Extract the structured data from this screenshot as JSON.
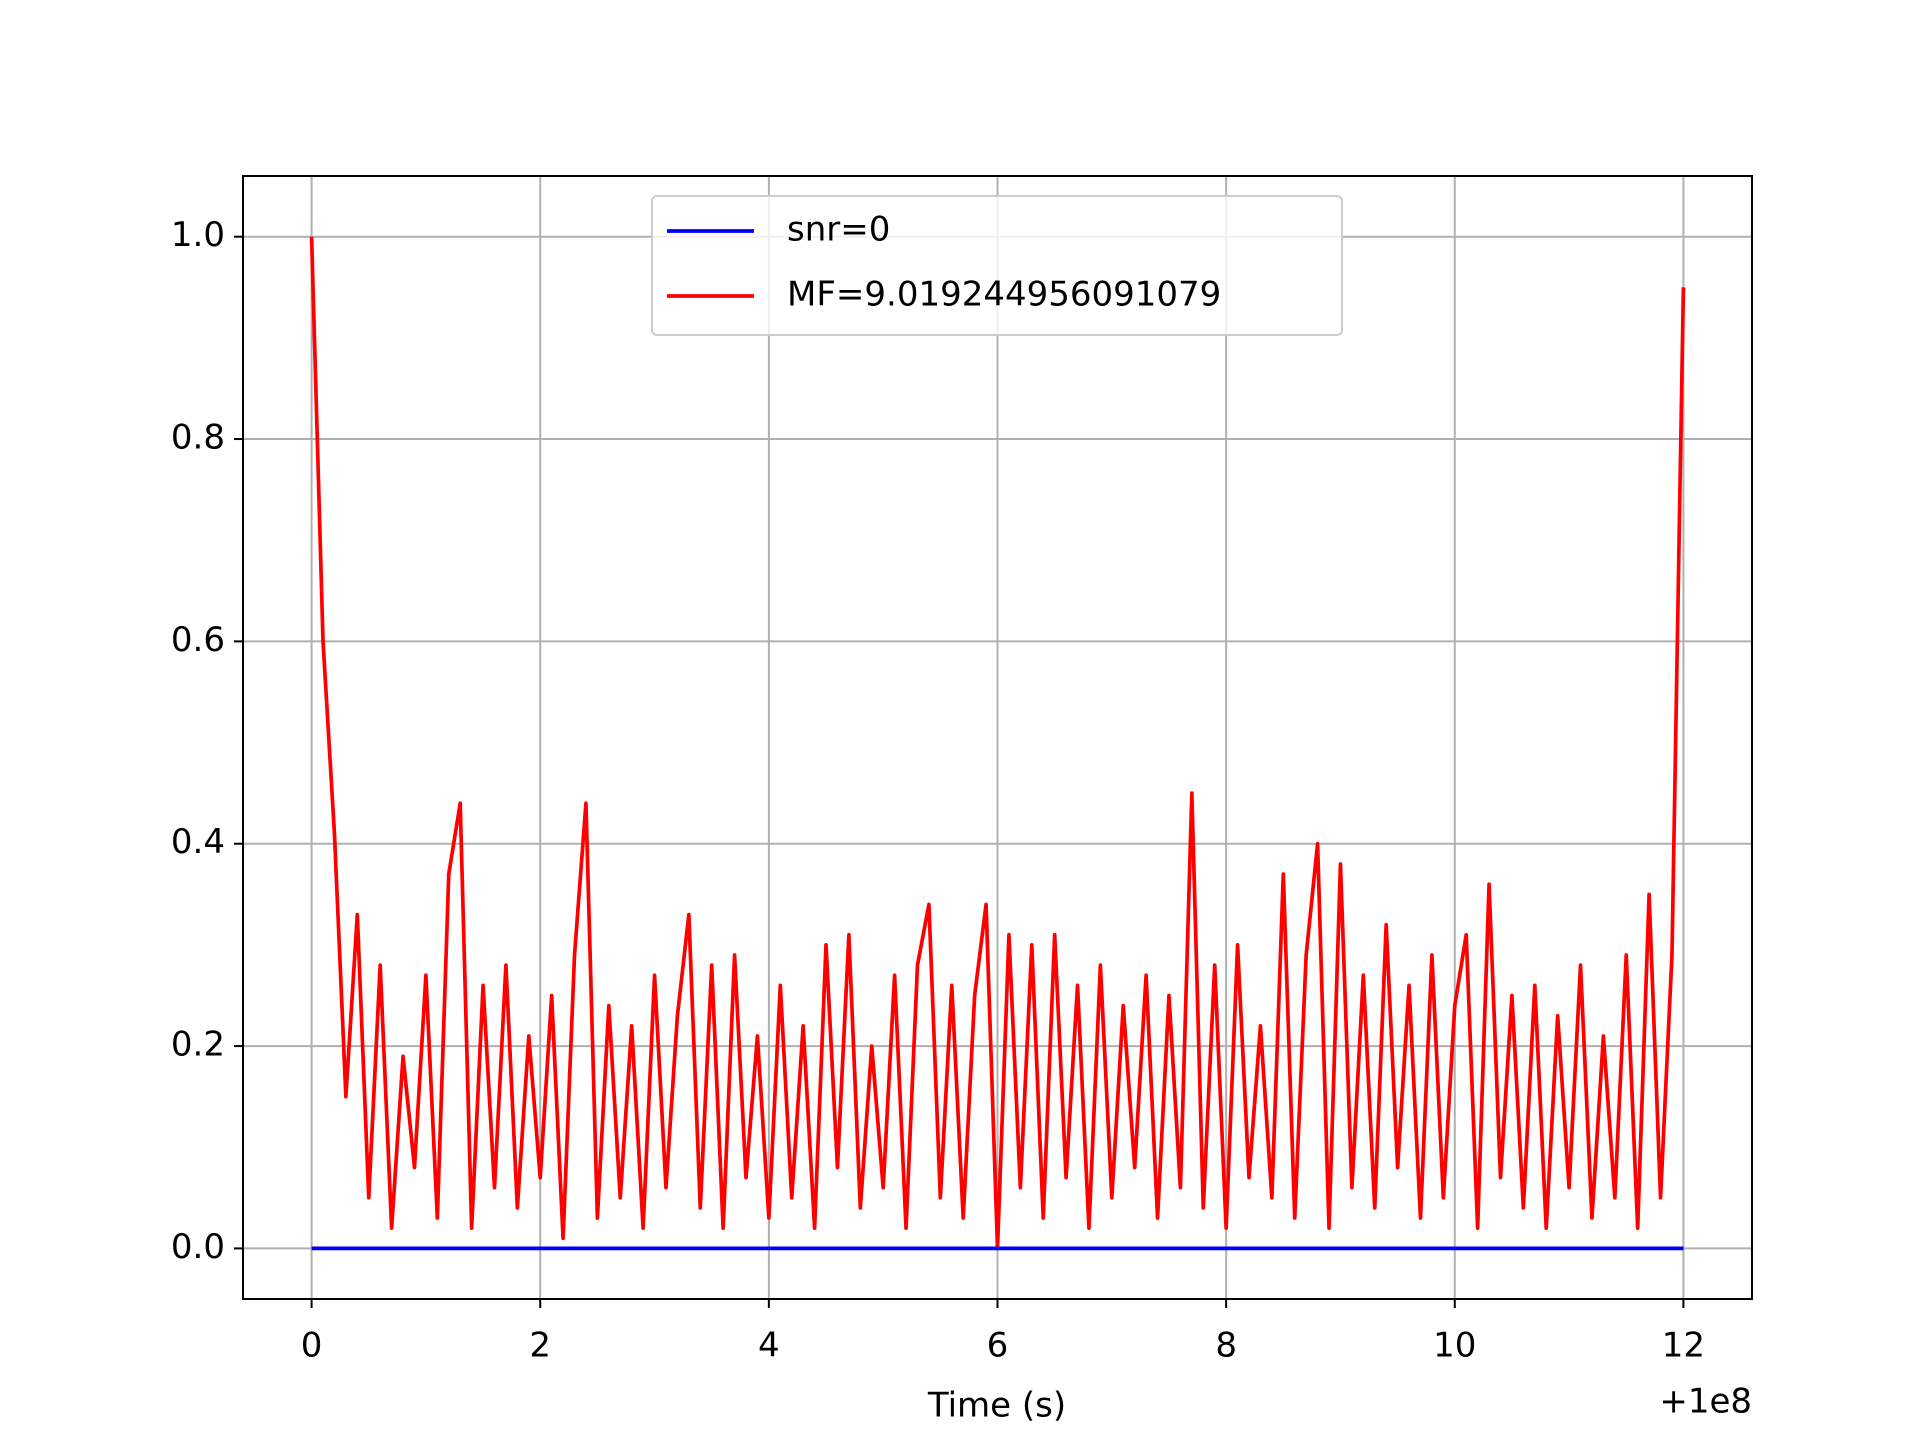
{
  "chart_data": {
    "type": "line",
    "xlabel": "Time (s)",
    "x_offset_label": "+1e8",
    "xlim": [
      -0.6,
      12.6
    ],
    "xticks": [
      0,
      2,
      4,
      6,
      8,
      10,
      12
    ],
    "ylim": [
      -0.05,
      1.06
    ],
    "yticks": [
      {
        "value": 0,
        "label": "0.0"
      },
      {
        "value": 0.2,
        "label": "0.2"
      },
      {
        "value": 0.4,
        "label": "0.4"
      },
      {
        "value": 0.6,
        "label": "0.6"
      },
      {
        "value": 0.8,
        "label": "0.8"
      },
      {
        "value": 1,
        "label": "1.0"
      }
    ],
    "grid": true,
    "legend": "upper center",
    "series": [
      {
        "name": "snr=0",
        "color": "#0000ff",
        "x": [
          0,
          12
        ],
        "values": [
          0,
          0
        ]
      },
      {
        "name": "MF=9.019244956091079",
        "color": "#ff0000",
        "x": [
          0,
          0.1,
          0.2,
          0.3,
          0.4,
          0.5,
          0.6,
          0.7,
          0.8,
          0.9,
          1,
          1.1,
          1.2,
          1.3,
          1.4,
          1.5,
          1.6,
          1.7,
          1.8,
          1.9,
          2,
          2.1,
          2.2,
          2.3,
          2.4,
          2.5,
          2.6,
          2.7,
          2.8,
          2.9,
          3,
          3.1,
          3.2,
          3.3,
          3.4,
          3.5,
          3.6,
          3.7,
          3.8,
          3.9,
          4,
          4.1,
          4.2,
          4.3,
          4.4,
          4.5,
          4.6,
          4.7,
          4.8,
          4.9,
          5,
          5.1,
          5.2,
          5.3,
          5.4,
          5.5,
          5.6,
          5.7,
          5.8,
          5.9,
          6,
          6.1,
          6.2,
          6.3,
          6.4,
          6.5,
          6.6,
          6.7,
          6.8,
          6.9,
          7,
          7.1,
          7.2,
          7.3,
          7.4,
          7.5,
          7.6,
          7.7,
          7.8,
          7.9,
          8,
          8.1,
          8.2,
          8.3,
          8.4,
          8.5,
          8.6,
          8.7,
          8.8,
          8.9,
          9,
          9.1,
          9.2,
          9.3,
          9.4,
          9.5,
          9.6,
          9.7,
          9.8,
          9.9,
          10,
          10.1,
          10.2,
          10.3,
          10.4,
          10.5,
          10.6,
          10.7,
          10.8,
          10.9,
          11,
          11.1,
          11.2,
          11.3,
          11.4,
          11.5,
          11.6,
          11.7,
          11.8,
          11.9,
          12
        ],
        "values": [
          1.0,
          0.6,
          0.41,
          0.15,
          0.33,
          0.05,
          0.28,
          0.02,
          0.19,
          0.08,
          0.27,
          0.03,
          0.37,
          0.44,
          0.02,
          0.26,
          0.06,
          0.28,
          0.04,
          0.21,
          0.07,
          0.25,
          0.01,
          0.29,
          0.44,
          0.03,
          0.24,
          0.05,
          0.22,
          0.02,
          0.27,
          0.06,
          0.23,
          0.33,
          0.04,
          0.28,
          0.02,
          0.29,
          0.07,
          0.21,
          0.03,
          0.26,
          0.05,
          0.22,
          0.02,
          0.3,
          0.08,
          0.31,
          0.04,
          0.2,
          0.06,
          0.27,
          0.02,
          0.28,
          0.34,
          0.05,
          0.26,
          0.03,
          0.25,
          0.34,
          0.0,
          0.31,
          0.06,
          0.3,
          0.03,
          0.31,
          0.07,
          0.26,
          0.02,
          0.28,
          0.05,
          0.24,
          0.08,
          0.27,
          0.03,
          0.25,
          0.06,
          0.45,
          0.04,
          0.28,
          0.02,
          0.3,
          0.07,
          0.22,
          0.05,
          0.37,
          0.03,
          0.29,
          0.4,
          0.02,
          0.38,
          0.06,
          0.27,
          0.04,
          0.32,
          0.08,
          0.26,
          0.03,
          0.29,
          0.05,
          0.24,
          0.31,
          0.02,
          0.36,
          0.07,
          0.25,
          0.04,
          0.26,
          0.02,
          0.23,
          0.06,
          0.28,
          0.03,
          0.21,
          0.05,
          0.29,
          0.02,
          0.35,
          0.05,
          0.29,
          0.95
        ]
      }
    ]
  }
}
